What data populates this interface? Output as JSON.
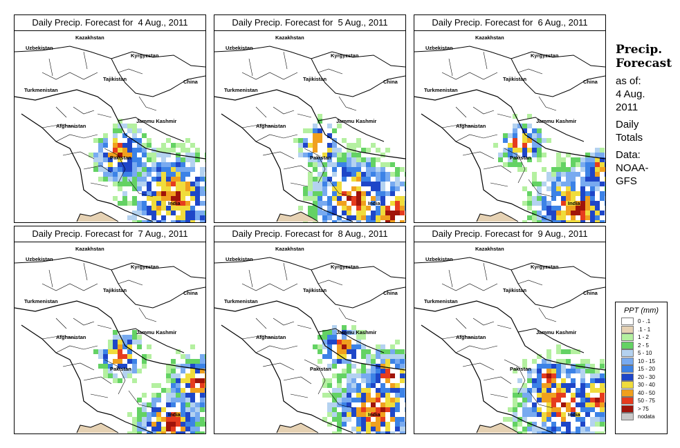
{
  "panels": [
    {
      "title": "Daily Precip. Forecast for  4 Aug., 2011",
      "pattern": "d1"
    },
    {
      "title": "Daily Precip. Forecast for  5 Aug., 2011",
      "pattern": "d2"
    },
    {
      "title": "Daily Precip. Forecast for  6 Aug., 2011",
      "pattern": "d3"
    },
    {
      "title": "Daily Precip. Forecast for  7 Aug., 2011",
      "pattern": "d4"
    },
    {
      "title": "Daily Precip. Forecast for  8 Aug., 2011",
      "pattern": "d5"
    },
    {
      "title": "Daily Precip. Forecast for  9 Aug., 2011",
      "pattern": "d6"
    }
  ],
  "map_labels": {
    "kazakhstan": "Kazakhstan",
    "uzbekistan": "Uzbekistan",
    "kyrgyzstan": "Kyrgyzstan",
    "tajikistan": "Tajikistan",
    "china": "China",
    "turkmenistan": "Turkmenistan",
    "afghanistan": "Afghanistan",
    "jammu_kashmir": "Jammu Kashmir",
    "pakistan": "Pakistan",
    "india": "India"
  },
  "side": {
    "heading_line1": "Precip.",
    "heading_line2": "Forecast",
    "asof_line1": "as of:",
    "asof_line2": "4 Aug.",
    "asof_line3": "2011",
    "daily_line1": "Daily",
    "daily_line2": "Totals",
    "data_line1": "Data:",
    "data_line2": "NOAA-",
    "data_line3": "GFS"
  },
  "legend": {
    "title": "PPT (mm)",
    "items": [
      {
        "label": "0 - .1",
        "color": "#ffffff"
      },
      {
        "label": ".1 - 1",
        "color": "#e6d2b4"
      },
      {
        "label": "1 - 2",
        "color": "#b4f0a0"
      },
      {
        "label": "2 - 5",
        "color": "#64d264"
      },
      {
        "label": "5 - 10",
        "color": "#b4d2f0"
      },
      {
        "label": "10 - 15",
        "color": "#78aaf0"
      },
      {
        "label": "15 - 20",
        "color": "#3c82e6"
      },
      {
        "label": "20 - 30",
        "color": "#1e46c8"
      },
      {
        "label": "30 - 40",
        "color": "#f0dc3c"
      },
      {
        "label": "40 - 50",
        "color": "#f0a01e"
      },
      {
        "label": "50 - 75",
        "color": "#e63c1e"
      },
      {
        "label": "> 75",
        "color": "#a0140a"
      },
      {
        "label": "nodata",
        "color": "#c8c8c8"
      }
    ]
  }
}
